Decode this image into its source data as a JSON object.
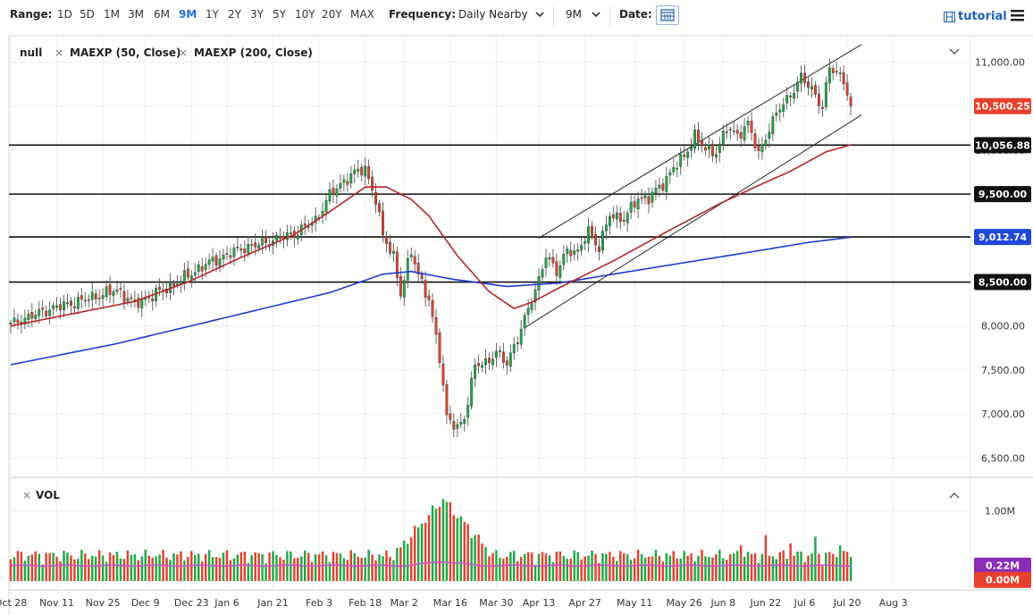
{
  "toolbar": {
    "range_label": "Range:",
    "ranges": [
      "1D",
      "5D",
      "1M",
      "3M",
      "6M",
      "9M",
      "1Y",
      "2Y",
      "3Y",
      "5Y",
      "10Y",
      "20Y",
      "MAX"
    ],
    "selected_range": "9M",
    "frequency_label": "Frequency:",
    "frequency_value": "Daily Nearby",
    "period_value": "9M",
    "date_label": "Date:",
    "tutorial_label": "tutorial"
  },
  "legend": {
    "symbol": "null",
    "ma50": "MAEXP (50, Close)",
    "ma200": "MAEXP (200, Close)",
    "vol": "VOL"
  },
  "colors": {
    "up": "#1fa845",
    "down": "#e0412f",
    "ma50": "#b5252a",
    "ma200": "#1f3bcf",
    "vol_avg": "#c84fc8",
    "level_red": "#e8412e",
    "level_blue": "#2147d8",
    "level_dark": "#111111"
  },
  "chart_data": [
    {
      "type": "candlestick",
      "title": "",
      "series": [
        "MAEXP (50, Close)",
        "MAEXP (200, Close)"
      ],
      "ylim": [
        6300,
        11300
      ],
      "yticks": [
        "11,000.00",
        "10,500.00",
        "10,000.00",
        "9,500.00",
        "9,000.00",
        "8,500.00",
        "8,000.00",
        "7,500.00",
        "7,000.00",
        "6,500.00"
      ],
      "ytick_values": [
        11000,
        10500,
        10000,
        9500,
        9000,
        8500,
        8000,
        7500,
        7000,
        6500
      ],
      "xticks": [
        "Oct 28",
        "Nov 11",
        "Nov 25",
        "Dec 9",
        "Dec 23",
        "Jan 6",
        "Jan 21",
        "Feb 3",
        "Feb 18",
        "Mar 2",
        "Mar 16",
        "Mar 30",
        "Apr 13",
        "Apr 27",
        "May 11",
        "May 26",
        "Jun 8",
        "Jun 22",
        "Jul 6",
        "Jul 20",
        "Aug 3"
      ],
      "xtick_pos": [
        0,
        13,
        26,
        38,
        51,
        61,
        74,
        87,
        100,
        111,
        124,
        137,
        149,
        162,
        176,
        190,
        201,
        213,
        224,
        236,
        249
      ],
      "x_span": 270,
      "horizontal_levels": [
        10056.88,
        9500,
        9012.74,
        8500
      ],
      "price_labels": [
        {
          "label": "10,500.25",
          "value": 10500.25,
          "style": "red"
        },
        {
          "label": "10,056.88",
          "value": 10056.88,
          "style": "dark"
        },
        {
          "label": "9,500.00",
          "value": 9500,
          "style": "dark"
        },
        {
          "label": "9,012.74",
          "value": 9012.74,
          "style": "blue"
        },
        {
          "label": "8,500.00",
          "value": 8500,
          "style": "dark"
        }
      ],
      "channel": [
        {
          "from": [
            149,
            9000
          ],
          "to": [
            240,
            11200
          ]
        },
        {
          "from": [
            145,
            7980
          ],
          "to": [
            240,
            10400
          ]
        }
      ],
      "close_anchors": [
        [
          0,
          8020
        ],
        [
          10,
          8180
        ],
        [
          20,
          8290
        ],
        [
          30,
          8410
        ],
        [
          35,
          8250
        ],
        [
          45,
          8450
        ],
        [
          55,
          8700
        ],
        [
          65,
          8880
        ],
        [
          72,
          8950
        ],
        [
          80,
          9050
        ],
        [
          86,
          9200
        ],
        [
          90,
          9490
        ],
        [
          96,
          9720
        ],
        [
          100,
          9790
        ],
        [
          103,
          9440
        ],
        [
          105,
          9020
        ],
        [
          108,
          8800
        ],
        [
          110,
          8360
        ],
        [
          113,
          8850
        ],
        [
          115,
          8600
        ],
        [
          118,
          8280
        ],
        [
          121,
          7660
        ],
        [
          123,
          6980
        ],
        [
          126,
          6820
        ],
        [
          128,
          6960
        ],
        [
          131,
          7560
        ],
        [
          134,
          7560
        ],
        [
          137,
          7720
        ],
        [
          140,
          7560
        ],
        [
          144,
          7980
        ],
        [
          148,
          8390
        ],
        [
          151,
          8820
        ],
        [
          154,
          8600
        ],
        [
          157,
          8880
        ],
        [
          160,
          8820
        ],
        [
          163,
          9100
        ],
        [
          166,
          8880
        ],
        [
          169,
          9270
        ],
        [
          173,
          9210
        ],
        [
          177,
          9460
        ],
        [
          180,
          9450
        ],
        [
          184,
          9620
        ],
        [
          187,
          9800
        ],
        [
          190,
          9920
        ],
        [
          193,
          10170
        ],
        [
          196,
          10000
        ],
        [
          199,
          9980
        ],
        [
          202,
          10250
        ],
        [
          205,
          10170
        ],
        [
          208,
          10300
        ],
        [
          211,
          9950
        ],
        [
          214,
          10250
        ],
        [
          217,
          10480
        ],
        [
          220,
          10630
        ],
        [
          223,
          10820
        ],
        [
          226,
          10700
        ],
        [
          229,
          10480
        ],
        [
          231,
          10930
        ],
        [
          233,
          10900
        ],
        [
          235,
          10790
        ],
        [
          237,
          10500
        ]
      ],
      "ma50": [
        [
          0,
          8000
        ],
        [
          20,
          8160
        ],
        [
          35,
          8280
        ],
        [
          50,
          8500
        ],
        [
          65,
          8780
        ],
        [
          80,
          9040
        ],
        [
          90,
          9300
        ],
        [
          100,
          9580
        ],
        [
          106,
          9580
        ],
        [
          113,
          9440
        ],
        [
          118,
          9250
        ],
        [
          126,
          8800
        ],
        [
          135,
          8390
        ],
        [
          142,
          8200
        ],
        [
          147,
          8270
        ],
        [
          155,
          8440
        ],
        [
          170,
          8740
        ],
        [
          185,
          9070
        ],
        [
          200,
          9390
        ],
        [
          210,
          9580
        ],
        [
          220,
          9760
        ],
        [
          230,
          9980
        ],
        [
          237,
          10060
        ]
      ],
      "ma200": [
        [
          0,
          7560
        ],
        [
          30,
          7800
        ],
        [
          60,
          8090
        ],
        [
          90,
          8380
        ],
        [
          105,
          8590
        ],
        [
          113,
          8620
        ],
        [
          125,
          8530
        ],
        [
          140,
          8450
        ],
        [
          155,
          8490
        ],
        [
          170,
          8590
        ],
        [
          190,
          8720
        ],
        [
          210,
          8850
        ],
        [
          225,
          8950
        ],
        [
          237,
          9010
        ]
      ],
      "volume": {
        "label": "VOL",
        "yticks": [
          "1.00M"
        ],
        "ymax": 1400000,
        "avg_label": "0.22M",
        "min_label": "0.00M",
        "avg": 220000,
        "spike_index": 122,
        "peak": 1350000
      }
    }
  ]
}
